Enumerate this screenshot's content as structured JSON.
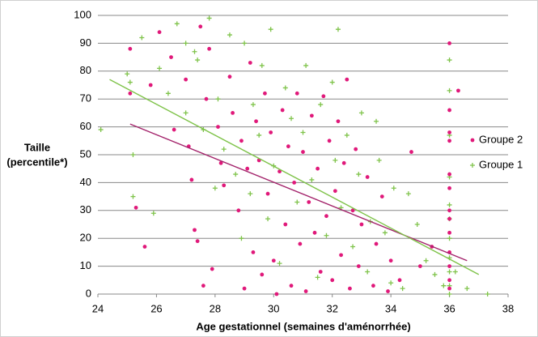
{
  "chart_data": {
    "type": "scatter",
    "xlabel": "Age gestationnel (semaines d'aménorrhée)",
    "ylabel": [
      "Taille",
      "(percentile*)"
    ],
    "xlim": [
      24,
      38
    ],
    "xticks": [
      24,
      26,
      28,
      30,
      32,
      34,
      36,
      38
    ],
    "ylim": [
      0,
      100
    ],
    "yticks": [
      0,
      10,
      20,
      30,
      40,
      50,
      60,
      70,
      80,
      90,
      100
    ],
    "grid": true,
    "legend": "right",
    "series": [
      {
        "name": "Groupe 2",
        "color": "#e0197a",
        "marker": "dot",
        "x": [
          25.1,
          25.1,
          25.3,
          25.6,
          25.8,
          26.1,
          26.5,
          26.6,
          27,
          27.1,
          27.2,
          27.3,
          27.4,
          27.5,
          27.6,
          27.7,
          27.8,
          27.9,
          28.1,
          28.2,
          28.3,
          28.5,
          28.6,
          28.8,
          28.9,
          29,
          29.1,
          29.2,
          29.3,
          29.4,
          29.5,
          29.6,
          29.7,
          29.8,
          29.9,
          30,
          30.1,
          30.2,
          30.3,
          30.4,
          30.5,
          30.6,
          30.7,
          30.8,
          30.9,
          31,
          31.1,
          31.2,
          31.3,
          31.4,
          31.5,
          31.6,
          31.7,
          31.8,
          31.9,
          32,
          32.1,
          32.2,
          32.3,
          32.4,
          32.5,
          32.6,
          32.7,
          32.8,
          32.9,
          33,
          33.2,
          33.4,
          33.5,
          33.7,
          33.9,
          34,
          34.3,
          34.7,
          35,
          35.4,
          36,
          36,
          36,
          36,
          36,
          36,
          36,
          36,
          36,
          36,
          36,
          36,
          36,
          36.3
        ],
        "values": [
          88,
          72,
          31,
          17,
          75,
          94,
          85,
          59,
          77,
          53,
          41,
          23,
          19,
          96,
          3,
          70,
          88,
          9,
          60,
          47,
          39,
          78,
          65,
          30,
          55,
          2,
          45,
          83,
          15,
          62,
          48,
          7,
          72,
          36,
          58,
          12,
          0,
          44,
          66,
          25,
          53,
          3,
          40,
          72,
          18,
          51,
          1,
          33,
          64,
          22,
          45,
          8,
          71,
          28,
          55,
          5,
          37,
          62,
          14,
          47,
          77,
          2,
          30,
          52,
          10,
          25,
          42,
          3,
          18,
          35,
          1,
          12,
          5,
          51,
          10,
          17,
          90,
          66,
          58,
          55,
          43,
          38,
          30,
          27,
          22,
          15,
          10,
          5,
          2,
          73
        ],
        "trendline": {
          "x": [
            25.1,
            36.6
          ],
          "y": [
            61,
            12
          ],
          "color": "#a3236b"
        }
      },
      {
        "name": "Groupe 1",
        "color": "#7fc34a",
        "marker": "plus",
        "x": [
          24.1,
          25,
          25.1,
          25.2,
          25.2,
          25.5,
          25.9,
          26.1,
          26.4,
          26.7,
          27,
          27,
          27.3,
          27.4,
          27.6,
          27.8,
          28,
          28.1,
          28.3,
          28.5,
          28.7,
          28.9,
          29,
          29.2,
          29.3,
          29.5,
          29.6,
          29.8,
          29.9,
          30,
          30.2,
          30.4,
          30.6,
          30.8,
          31,
          31.1,
          31.3,
          31.5,
          31.6,
          31.8,
          32,
          32.1,
          32.2,
          32.3,
          32.5,
          32.7,
          32.9,
          33,
          33.2,
          33.3,
          33.5,
          33.6,
          33.8,
          34,
          34.1,
          34.4,
          34.6,
          34.9,
          35.2,
          35.5,
          35.8,
          36,
          36,
          36,
          36,
          36,
          36,
          36,
          36,
          36,
          36,
          36,
          36.2,
          36.6,
          37.3
        ],
        "values": [
          59,
          79,
          76,
          50,
          35,
          92,
          29,
          81,
          72,
          97,
          65,
          90,
          87,
          84,
          59,
          99,
          38,
          70,
          52,
          93,
          43,
          20,
          90,
          36,
          68,
          57,
          82,
          27,
          95,
          46,
          11,
          74,
          63,
          33,
          58,
          82,
          41,
          6,
          68,
          21,
          76,
          48,
          95,
          31,
          57,
          17,
          43,
          65,
          8,
          26,
          62,
          48,
          22,
          4,
          38,
          2,
          36,
          25,
          12,
          7,
          3,
          84,
          73,
          57,
          42,
          32,
          27,
          20,
          13,
          8,
          3,
          0,
          8,
          2,
          0
        ],
        "trendline": {
          "x": [
            24.4,
            37
          ],
          "y": [
            77,
            7
          ],
          "color": "#7fc34a"
        }
      }
    ]
  }
}
